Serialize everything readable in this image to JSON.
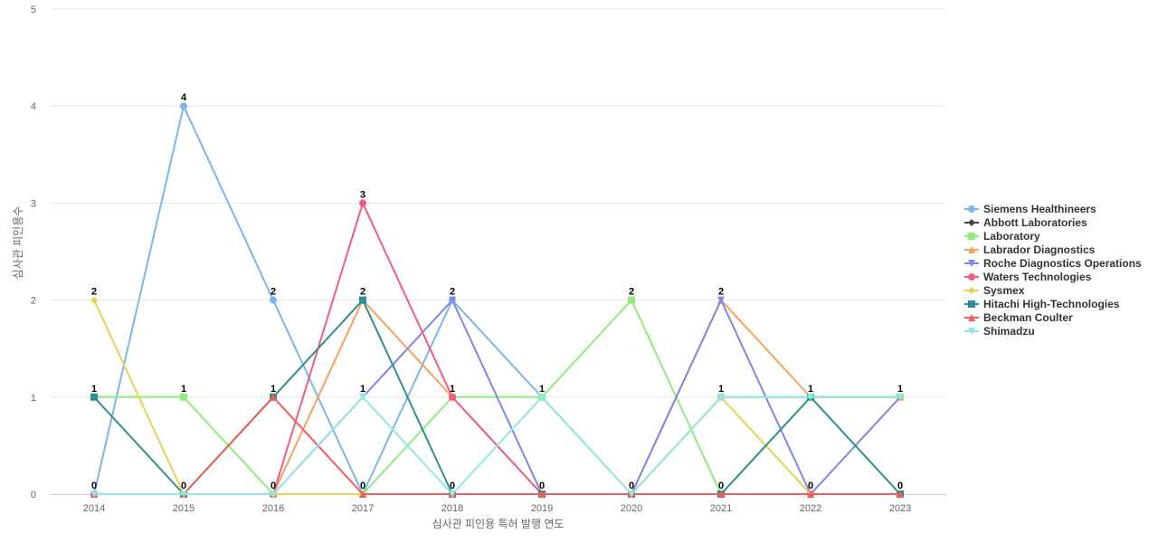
{
  "chart_data": {
    "type": "line",
    "xlabel": "심사관 피인용 특허 발행 연도",
    "ylabel": "심사관 피인용수",
    "x": [
      "2014",
      "2015",
      "2016",
      "2017",
      "2018",
      "2019",
      "2020",
      "2021",
      "2022",
      "2023"
    ],
    "ylim": [
      0,
      5
    ],
    "yticks": [
      0,
      1,
      2,
      3,
      4,
      5
    ],
    "grid": true,
    "legend_position": "right",
    "series": [
      {
        "name": "Siemens Healthineers",
        "color": "#7cb5ec",
        "marker": "circle",
        "values": [
          0,
          4,
          2,
          0,
          2,
          1,
          0,
          1,
          1,
          1
        ]
      },
      {
        "name": "Abbott Laboratories",
        "color": "#434348",
        "marker": "diamond",
        "values": [
          0,
          0,
          0,
          0,
          0,
          0,
          0,
          0,
          0,
          0
        ]
      },
      {
        "name": "Laboratory",
        "color": "#90ed7d",
        "marker": "square",
        "values": [
          1,
          1,
          0,
          0,
          1,
          1,
          2,
          0,
          1,
          1
        ]
      },
      {
        "name": "Labrador Diagnostics",
        "color": "#f7a35c",
        "marker": "triangle",
        "values": [
          0,
          0,
          0,
          2,
          1,
          0,
          0,
          2,
          1,
          1
        ]
      },
      {
        "name": "Roche Diagnostics Operations",
        "color": "#8085e9",
        "marker": "triangle-down",
        "values": [
          0,
          0,
          0,
          1,
          2,
          0,
          0,
          2,
          0,
          1
        ]
      },
      {
        "name": "Waters Technologies",
        "color": "#f15c80",
        "marker": "circle",
        "values": [
          0,
          0,
          0,
          3,
          1,
          0,
          0,
          0,
          0,
          0
        ]
      },
      {
        "name": "Sysmex",
        "color": "#e4d354",
        "marker": "diamond",
        "values": [
          2,
          0,
          0,
          0,
          0,
          0,
          0,
          1,
          0,
          0
        ]
      },
      {
        "name": "Hitachi High-Technologies",
        "color": "#2b908f",
        "marker": "square",
        "values": [
          1,
          0,
          1,
          2,
          0,
          0,
          0,
          0,
          1,
          0
        ]
      },
      {
        "name": "Beckman Coulter",
        "color": "#f45b5b",
        "marker": "triangle",
        "values": [
          0,
          0,
          1,
          0,
          0,
          0,
          0,
          0,
          0,
          0
        ]
      },
      {
        "name": "Shimadzu",
        "color": "#91e8e1",
        "marker": "triangle-down",
        "values": [
          0,
          0,
          0,
          1,
          0,
          1,
          0,
          1,
          1,
          1
        ]
      }
    ],
    "data_labels": [
      {
        "x": "2014",
        "series": "Sysmex",
        "text": "2"
      },
      {
        "x": "2014",
        "series": "Hitachi High-Technologies",
        "text": "1"
      },
      {
        "x": "2014",
        "series": "Siemens Healthineers",
        "text": "0"
      },
      {
        "x": "2015",
        "series": "Siemens Healthineers",
        "text": "4"
      },
      {
        "x": "2015",
        "series": "Laboratory",
        "text": "1"
      },
      {
        "x": "2015",
        "series": "Abbott Laboratories",
        "text": "0"
      },
      {
        "x": "2016",
        "series": "Siemens Healthineers",
        "text": "2"
      },
      {
        "x": "2016",
        "series": "Hitachi High-Technologies",
        "text": "1"
      },
      {
        "x": "2016",
        "series": "Abbott Laboratories",
        "text": "0"
      },
      {
        "x": "2017",
        "series": "Waters Technologies",
        "text": "3"
      },
      {
        "x": "2017",
        "series": "Hitachi High-Technologies",
        "text": "2"
      },
      {
        "x": "2017",
        "series": "Shimadzu",
        "text": "1"
      },
      {
        "x": "2017",
        "series": "Siemens Healthineers",
        "text": "0"
      },
      {
        "x": "2018",
        "series": "Siemens Healthineers",
        "text": "2"
      },
      {
        "x": "2018",
        "series": "Laboratory",
        "text": "1"
      },
      {
        "x": "2018",
        "series": "Abbott Laboratories",
        "text": "0"
      },
      {
        "x": "2019",
        "series": "Siemens Healthineers",
        "text": "1"
      },
      {
        "x": "2019",
        "series": "Abbott Laboratories",
        "text": "0"
      },
      {
        "x": "2020",
        "series": "Laboratory",
        "text": "2"
      },
      {
        "x": "2020",
        "series": "Abbott Laboratories",
        "text": "0"
      },
      {
        "x": "2021",
        "series": "Labrador Diagnostics",
        "text": "2"
      },
      {
        "x": "2021",
        "series": "Siemens Healthineers",
        "text": "1"
      },
      {
        "x": "2021",
        "series": "Abbott Laboratories",
        "text": "0"
      },
      {
        "x": "2022",
        "series": "Siemens Healthineers",
        "text": "1"
      },
      {
        "x": "2022",
        "series": "Abbott Laboratories",
        "text": "0"
      },
      {
        "x": "2023",
        "series": "Siemens Healthineers",
        "text": "1"
      },
      {
        "x": "2023",
        "series": "Abbott Laboratories",
        "text": "0"
      }
    ]
  }
}
